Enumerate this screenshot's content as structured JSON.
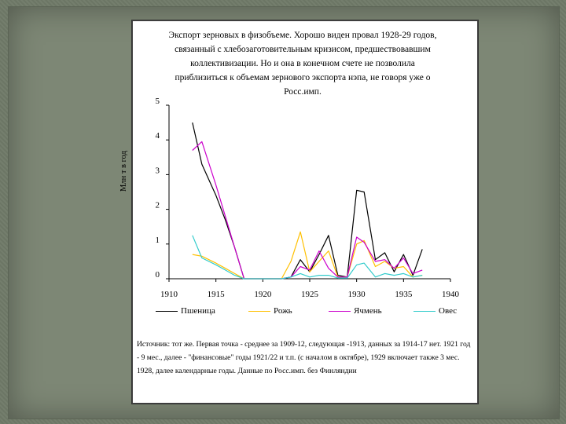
{
  "chart_data": {
    "type": "line",
    "title": "Экспорт зерновых в физобъеме. Хорошо виден провал 1928-29 годов, связанный с хлебозаготовительным кризисом, предшествовавшим коллективизации. Но и она в конечном счете не позволила приблизиться к объемам зернового экспорта нэпа, не говоря уже о Росс.имп.",
    "ylabel": "Млн т в год",
    "xlabel": "",
    "xlim": [
      1910,
      1940
    ],
    "ylim": [
      0,
      5
    ],
    "xticks": [
      "1910",
      "1915",
      "1920",
      "1925",
      "1930",
      "1935",
      "1940"
    ],
    "yticks": [
      "0",
      "1",
      "2",
      "3",
      "4",
      "5"
    ],
    "grid": false,
    "legend_position": "bottom",
    "series": [
      {
        "name": "Пшеница",
        "color": "#000000",
        "points": [
          [
            1912.5,
            4.5
          ],
          [
            1913.5,
            3.3
          ],
          [
            1915,
            2.4
          ],
          [
            1916,
            1.7
          ],
          [
            1917,
            0.9
          ],
          [
            1918,
            0.0
          ],
          [
            1922,
            0.0
          ],
          [
            1923,
            0.05
          ],
          [
            1924,
            0.55
          ],
          [
            1925,
            0.2
          ],
          [
            1926,
            0.7
          ],
          [
            1927,
            1.25
          ],
          [
            1928,
            0.1
          ],
          [
            1929,
            0.05
          ],
          [
            1930,
            2.55
          ],
          [
            1930.8,
            2.5
          ],
          [
            1932,
            0.55
          ],
          [
            1933,
            0.75
          ],
          [
            1934,
            0.2
          ],
          [
            1935,
            0.7
          ],
          [
            1936,
            0.1
          ],
          [
            1937,
            0.85
          ]
        ]
      },
      {
        "name": "Рожь",
        "color": "#ffc000",
        "points": [
          [
            1912.5,
            0.7
          ],
          [
            1913.5,
            0.65
          ],
          [
            1915,
            0.45
          ],
          [
            1916,
            0.3
          ],
          [
            1917,
            0.15
          ],
          [
            1918,
            0.0
          ],
          [
            1922,
            0.0
          ],
          [
            1923,
            0.5
          ],
          [
            1924,
            1.35
          ],
          [
            1925,
            0.2
          ],
          [
            1926,
            0.5
          ],
          [
            1927,
            0.8
          ],
          [
            1928,
            0.05
          ],
          [
            1929,
            0.05
          ],
          [
            1930,
            1.0
          ],
          [
            1930.8,
            1.1
          ],
          [
            1932,
            0.35
          ],
          [
            1933,
            0.5
          ],
          [
            1934,
            0.3
          ],
          [
            1935,
            0.35
          ],
          [
            1936,
            0.05
          ],
          [
            1937,
            0.1
          ]
        ]
      },
      {
        "name": "Ячмень",
        "color": "#cc00cc",
        "points": [
          [
            1912.5,
            3.7
          ],
          [
            1913.5,
            3.95
          ],
          [
            1915,
            2.7
          ],
          [
            1916,
            1.8
          ],
          [
            1917,
            0.9
          ],
          [
            1918,
            0.0
          ],
          [
            1922,
            0.0
          ],
          [
            1923,
            0.05
          ],
          [
            1924,
            0.35
          ],
          [
            1925,
            0.25
          ],
          [
            1926,
            0.8
          ],
          [
            1927,
            0.3
          ],
          [
            1928,
            0.05
          ],
          [
            1929,
            0.05
          ],
          [
            1930,
            1.2
          ],
          [
            1930.8,
            1.05
          ],
          [
            1932,
            0.5
          ],
          [
            1933,
            0.55
          ],
          [
            1934,
            0.3
          ],
          [
            1935,
            0.6
          ],
          [
            1936,
            0.15
          ],
          [
            1937,
            0.25
          ]
        ]
      },
      {
        "name": "Овес",
        "color": "#33cccc",
        "points": [
          [
            1912.5,
            1.25
          ],
          [
            1913.5,
            0.6
          ],
          [
            1915,
            0.4
          ],
          [
            1916,
            0.25
          ],
          [
            1917,
            0.1
          ],
          [
            1918,
            0.0
          ],
          [
            1922,
            0.0
          ],
          [
            1923,
            0.05
          ],
          [
            1924,
            0.15
          ],
          [
            1925,
            0.05
          ],
          [
            1926,
            0.1
          ],
          [
            1927,
            0.1
          ],
          [
            1928,
            0.02
          ],
          [
            1929,
            0.02
          ],
          [
            1930,
            0.4
          ],
          [
            1930.8,
            0.45
          ],
          [
            1932,
            0.05
          ],
          [
            1933,
            0.15
          ],
          [
            1934,
            0.1
          ],
          [
            1935,
            0.15
          ],
          [
            1936,
            0.05
          ],
          [
            1937,
            0.1
          ]
        ]
      }
    ]
  },
  "source_note": "Источник: тот же. Первая точка - среднее за 1909-12, следующая -1913, данных за 1914-17 нет. 1921 год - 9 мес., далее - \"финансовые\" годы 1921/22 и т.п. (с началом в октябре), 1929 включает также 3 мес. 1928, далее календарные годы. Данные по Росс.имп. без Финляндии"
}
